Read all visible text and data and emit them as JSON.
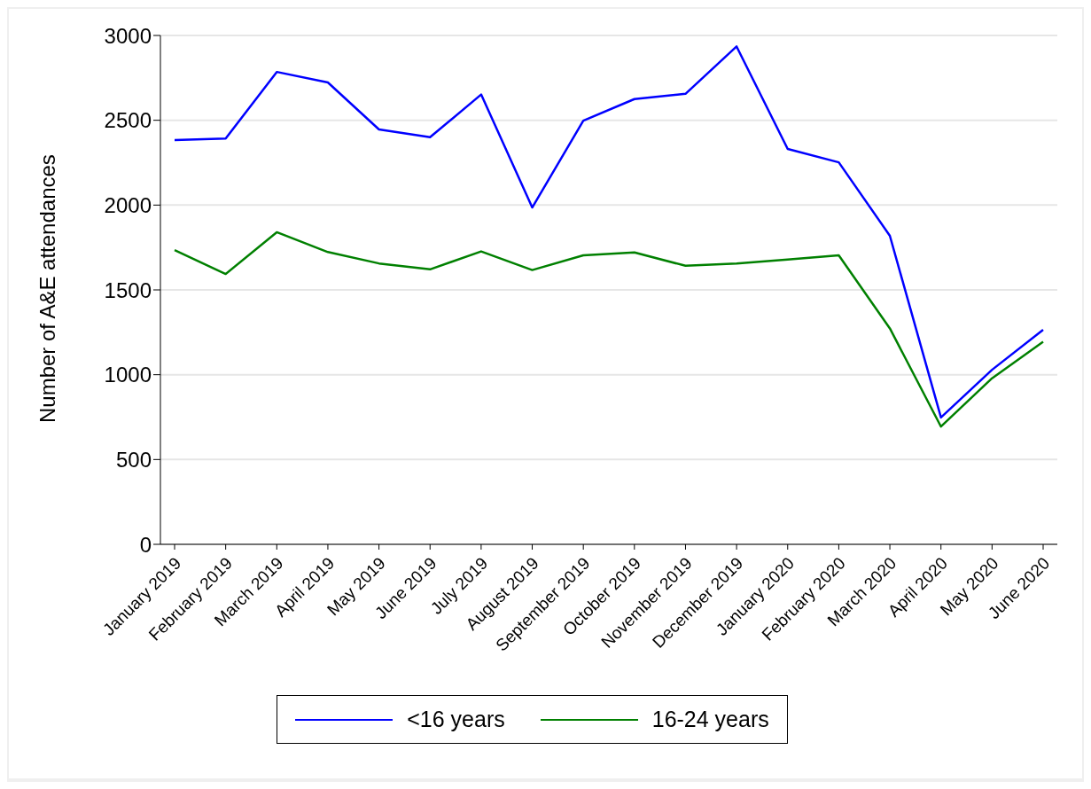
{
  "chart_data": {
    "type": "line",
    "categories": [
      "January 2019",
      "February 2019",
      "March 2019",
      "April 2019",
      "May 2019",
      "June 2019",
      "July 2019",
      "August 2019",
      "September 2019",
      "October 2019",
      "November 2019",
      "December 2019",
      "January 2020",
      "February 2020",
      "March 2020",
      "April 2020",
      "May 2020",
      "June 2020"
    ],
    "series": [
      {
        "name": "<16 years",
        "color": "#0000ff",
        "values": [
          2383,
          2392,
          2785,
          2723,
          2446,
          2400,
          2652,
          1986,
          2498,
          2625,
          2656,
          2935,
          2331,
          2252,
          1819,
          748,
          1029,
          1265
        ]
      },
      {
        "name": "16-24 years",
        "color": "#008000",
        "values": [
          1735,
          1594,
          1840,
          1723,
          1656,
          1621,
          1727,
          1617,
          1704,
          1721,
          1642,
          1656,
          1679,
          1704,
          1273,
          694,
          979,
          1194
        ]
      }
    ],
    "ylabel": "Number of A&E attendances",
    "ylim": [
      0,
      3000
    ],
    "yticks": [
      0,
      500,
      1000,
      1500,
      2000,
      2500,
      3000
    ],
    "grid": "y",
    "legend": "bottom",
    "marker": "none",
    "line_style": "solid"
  }
}
